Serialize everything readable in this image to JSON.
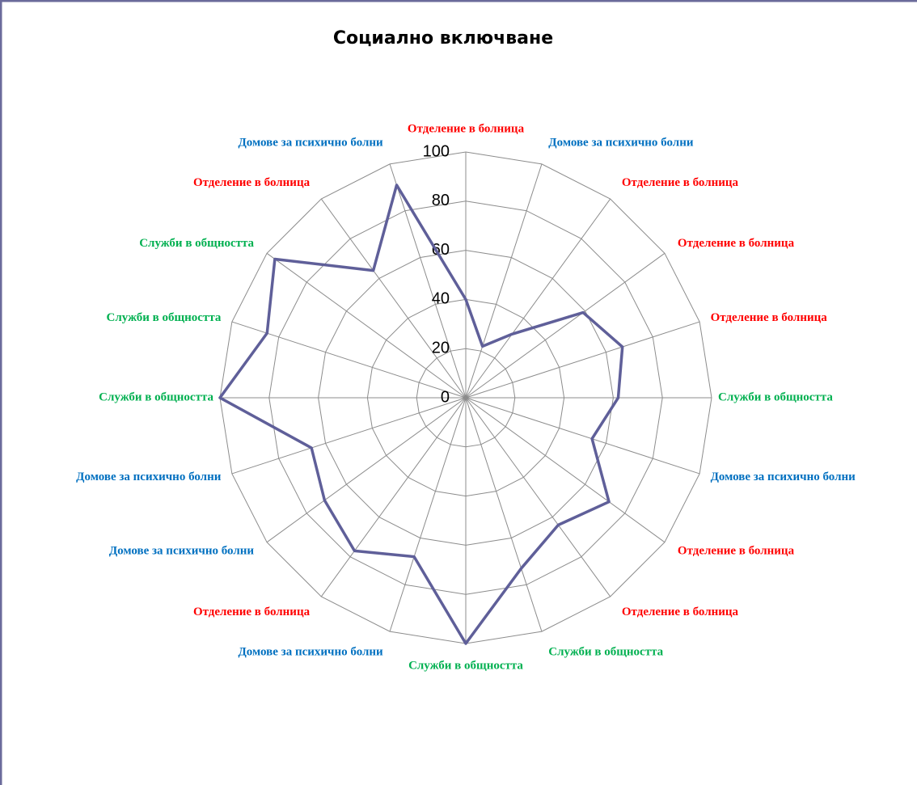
{
  "chart_data": {
    "type": "radar",
    "title": "Социално включване",
    "categories": [
      "Отделение в болница",
      "Домове за психично болни",
      "Отделение в болница",
      "Отделение в болница",
      "Отделение в болница",
      "Служби в общността",
      "Домове за психично болни",
      "Отделение в болница",
      "Отделение в болница",
      "Служби в общността",
      "Служби в общността",
      "Домове за психично болни",
      "Отделение в болница",
      "Домове за психично болни",
      "Домове за психично болни",
      "Служби в общността",
      "Служби в общността",
      "Служби в общността",
      "Отделение в болница",
      "Домове за психично болни"
    ],
    "category_colors": [
      "#ff0000",
      "#0070c0",
      "#ff0000",
      "#ff0000",
      "#ff0000",
      "#00b050",
      "#0070c0",
      "#ff0000",
      "#ff0000",
      "#00b050",
      "#00b050",
      "#0070c0",
      "#ff0000",
      "#0070c0",
      "#0070c0",
      "#00b050",
      "#00b050",
      "#00b050",
      "#ff0000",
      "#0070c0"
    ],
    "series": [
      {
        "color": "#5f5f99",
        "values": [
          40,
          22,
          32,
          59,
          67,
          62,
          54,
          72,
          64,
          73,
          100,
          68,
          77,
          71,
          66,
          100,
          85,
          96,
          64,
          91
        ]
      }
    ],
    "ylim": [
      0,
      100
    ],
    "yticks": [
      0,
      20,
      40,
      60,
      80,
      100
    ],
    "grid": true
  }
}
